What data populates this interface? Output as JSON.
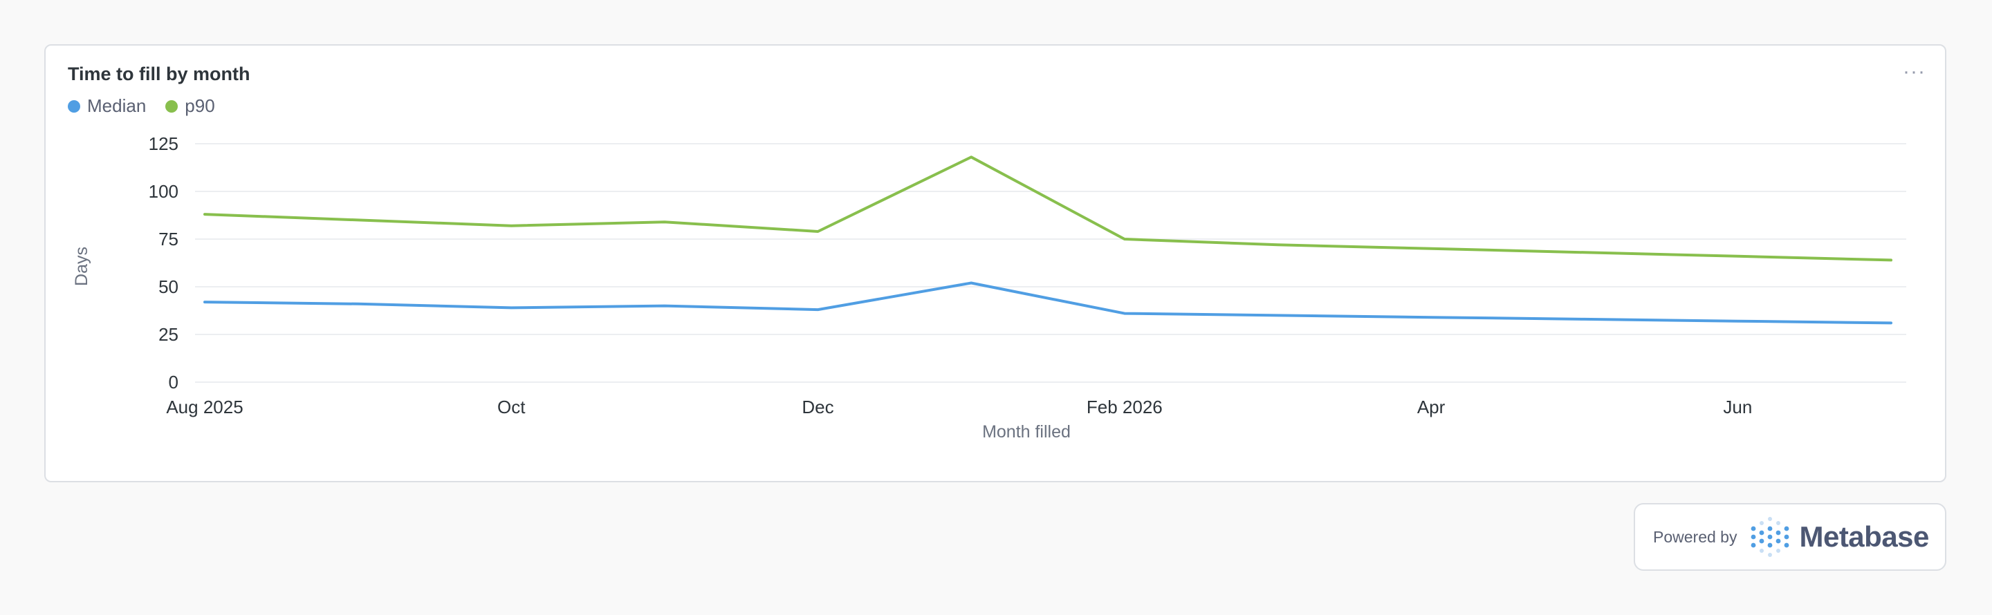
{
  "card": {
    "title": "Time to fill by month",
    "menu_label": "···"
  },
  "footer": {
    "powered_by": "Powered by",
    "brand": "Metabase",
    "logo_icon": "metabase-logo-icon"
  },
  "colors": {
    "median": "#509ee3",
    "p90": "#88bf4d",
    "grid": "#eceef1",
    "axis_text": "#2e353b"
  },
  "chart_data": {
    "type": "line",
    "title": "Time to fill by month",
    "xlabel": "Month filled",
    "ylabel": "Days",
    "x": [
      "2025-08",
      "2025-09",
      "2025-10",
      "2025-11",
      "2025-12",
      "2026-01",
      "2026-02",
      "2026-03",
      "2026-04",
      "2026-05",
      "2026-06",
      "2026-07"
    ],
    "x_ticks": [
      {
        "x": "2025-08",
        "label": "Aug 2025"
      },
      {
        "x": "2025-10",
        "label": "Oct"
      },
      {
        "x": "2025-12",
        "label": "Dec"
      },
      {
        "x": "2026-02",
        "label": "Feb 2026"
      },
      {
        "x": "2026-04",
        "label": "Apr"
      },
      {
        "x": "2026-06",
        "label": "Jun"
      }
    ],
    "y_ticks": [
      0,
      25,
      50,
      75,
      100,
      125
    ],
    "ylim": [
      0,
      125
    ],
    "grid": true,
    "legend_position": "top-left",
    "series": [
      {
        "name": "Median",
        "color": "#509ee3",
        "values": [
          42,
          41,
          39,
          40,
          38,
          52,
          36,
          35,
          34,
          33,
          32,
          31
        ]
      },
      {
        "name": "p90",
        "color": "#88bf4d",
        "values": [
          88,
          85,
          82,
          84,
          79,
          118,
          75,
          72,
          70,
          68,
          66,
          64
        ]
      }
    ]
  }
}
